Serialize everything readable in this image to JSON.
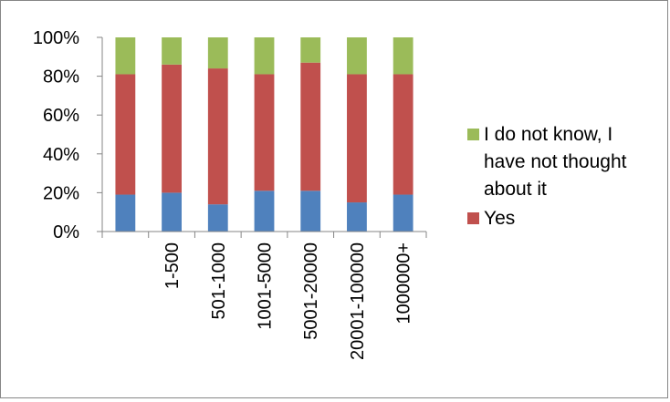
{
  "chart_data": {
    "type": "bar",
    "stacked": true,
    "percent_stacked": true,
    "categories": [
      "",
      "1-500",
      "501-1000",
      "1001-5000",
      "5001-20000",
      "20001-100000",
      "1000000+"
    ],
    "series": [
      {
        "name": "",
        "color": "#4f81bd",
        "values": [
          19,
          20,
          14,
          21,
          21,
          15,
          19
        ]
      },
      {
        "name": "Yes",
        "color": "#c0504d",
        "values": [
          62,
          66,
          70,
          60,
          66,
          66,
          62
        ]
      },
      {
        "name": "I do not know, I have not thought about it",
        "color": "#9bbb59",
        "values": [
          19,
          14,
          16,
          19,
          13,
          19,
          19
        ]
      }
    ],
    "y_ticks": [
      "0%",
      "20%",
      "40%",
      "60%",
      "80%",
      "100%"
    ],
    "ylim": [
      0,
      100
    ],
    "grid": false,
    "legend": {
      "position": "right",
      "entries": [
        {
          "lines": [
            "I do not know, I",
            "have not thought",
            "about it"
          ],
          "color": "#9bbb59"
        },
        {
          "lines": [
            "Yes"
          ],
          "color": "#c0504d"
        }
      ]
    }
  }
}
